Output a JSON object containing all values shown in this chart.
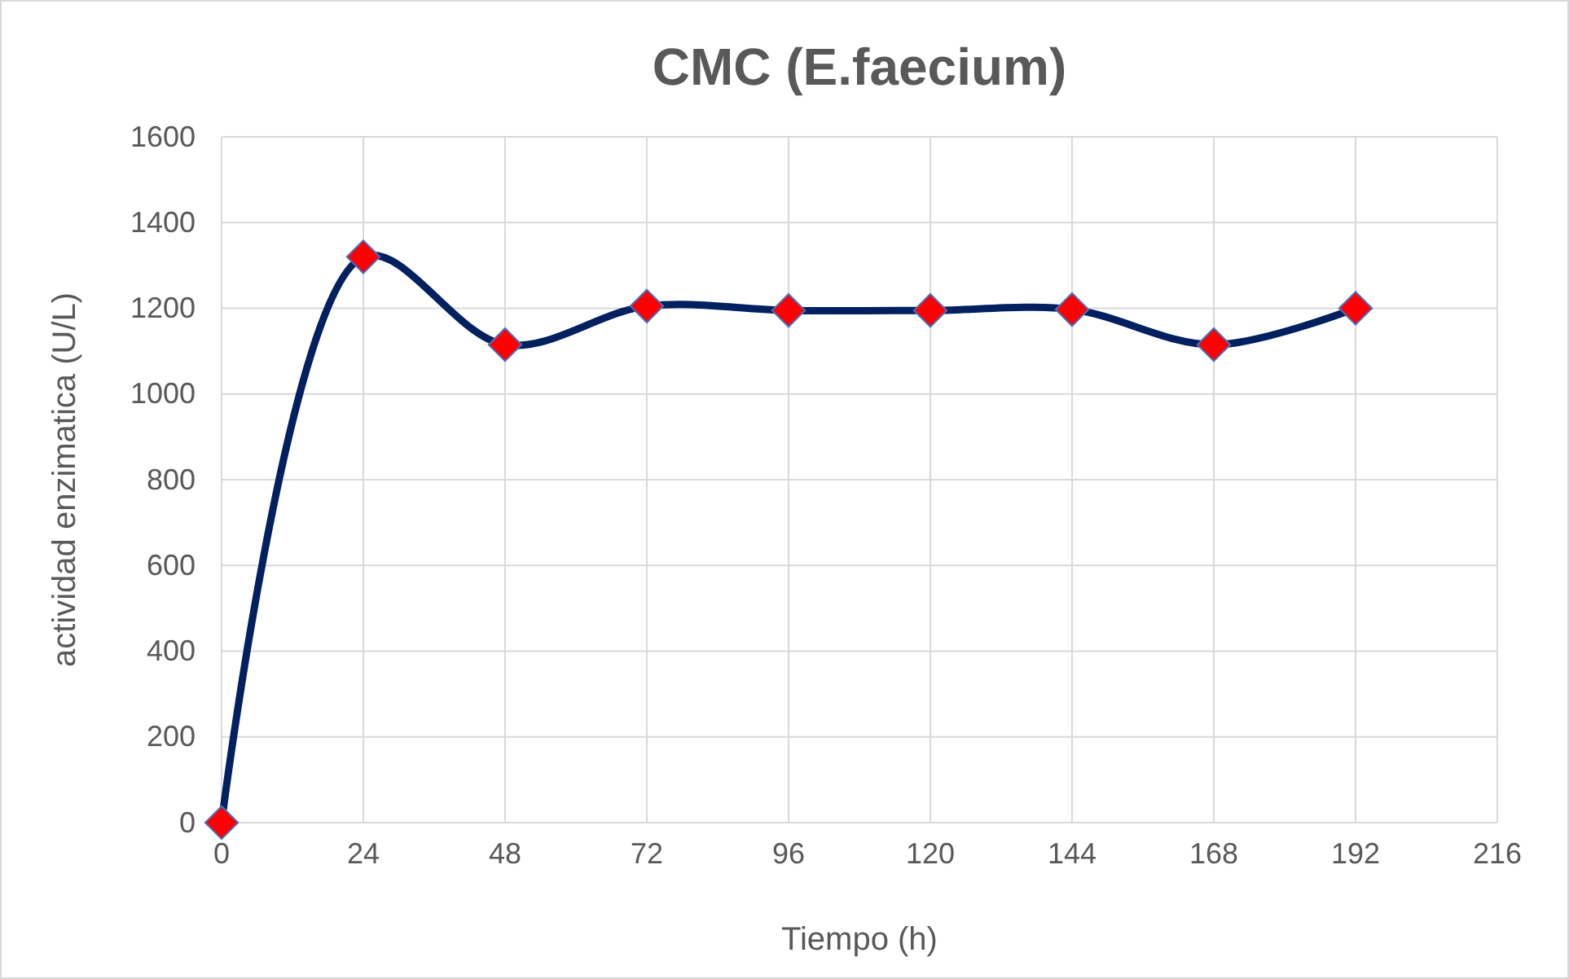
{
  "chart_data": {
    "type": "line",
    "title": "CMC (E.faecium)",
    "xlabel": "Tiempo (h)",
    "ylabel": "actividad enzimatica (U/L)",
    "x": [
      0,
      24,
      48,
      72,
      96,
      120,
      144,
      168,
      192
    ],
    "series": [
      {
        "color": "#002060",
        "values": [
          0,
          1320,
          1115,
          1205,
          1195,
          1195,
          1197,
          1115,
          1200
        ]
      }
    ],
    "xlim": [
      0,
      216
    ],
    "xticks": [
      0,
      24,
      48,
      72,
      96,
      120,
      144,
      168,
      192,
      216
    ],
    "ylim": [
      0,
      1600
    ],
    "yticks": [
      0,
      200,
      400,
      600,
      800,
      1000,
      1200,
      1400,
      1600
    ],
    "grid": true,
    "marker": "diamond",
    "line_style": "solid"
  }
}
